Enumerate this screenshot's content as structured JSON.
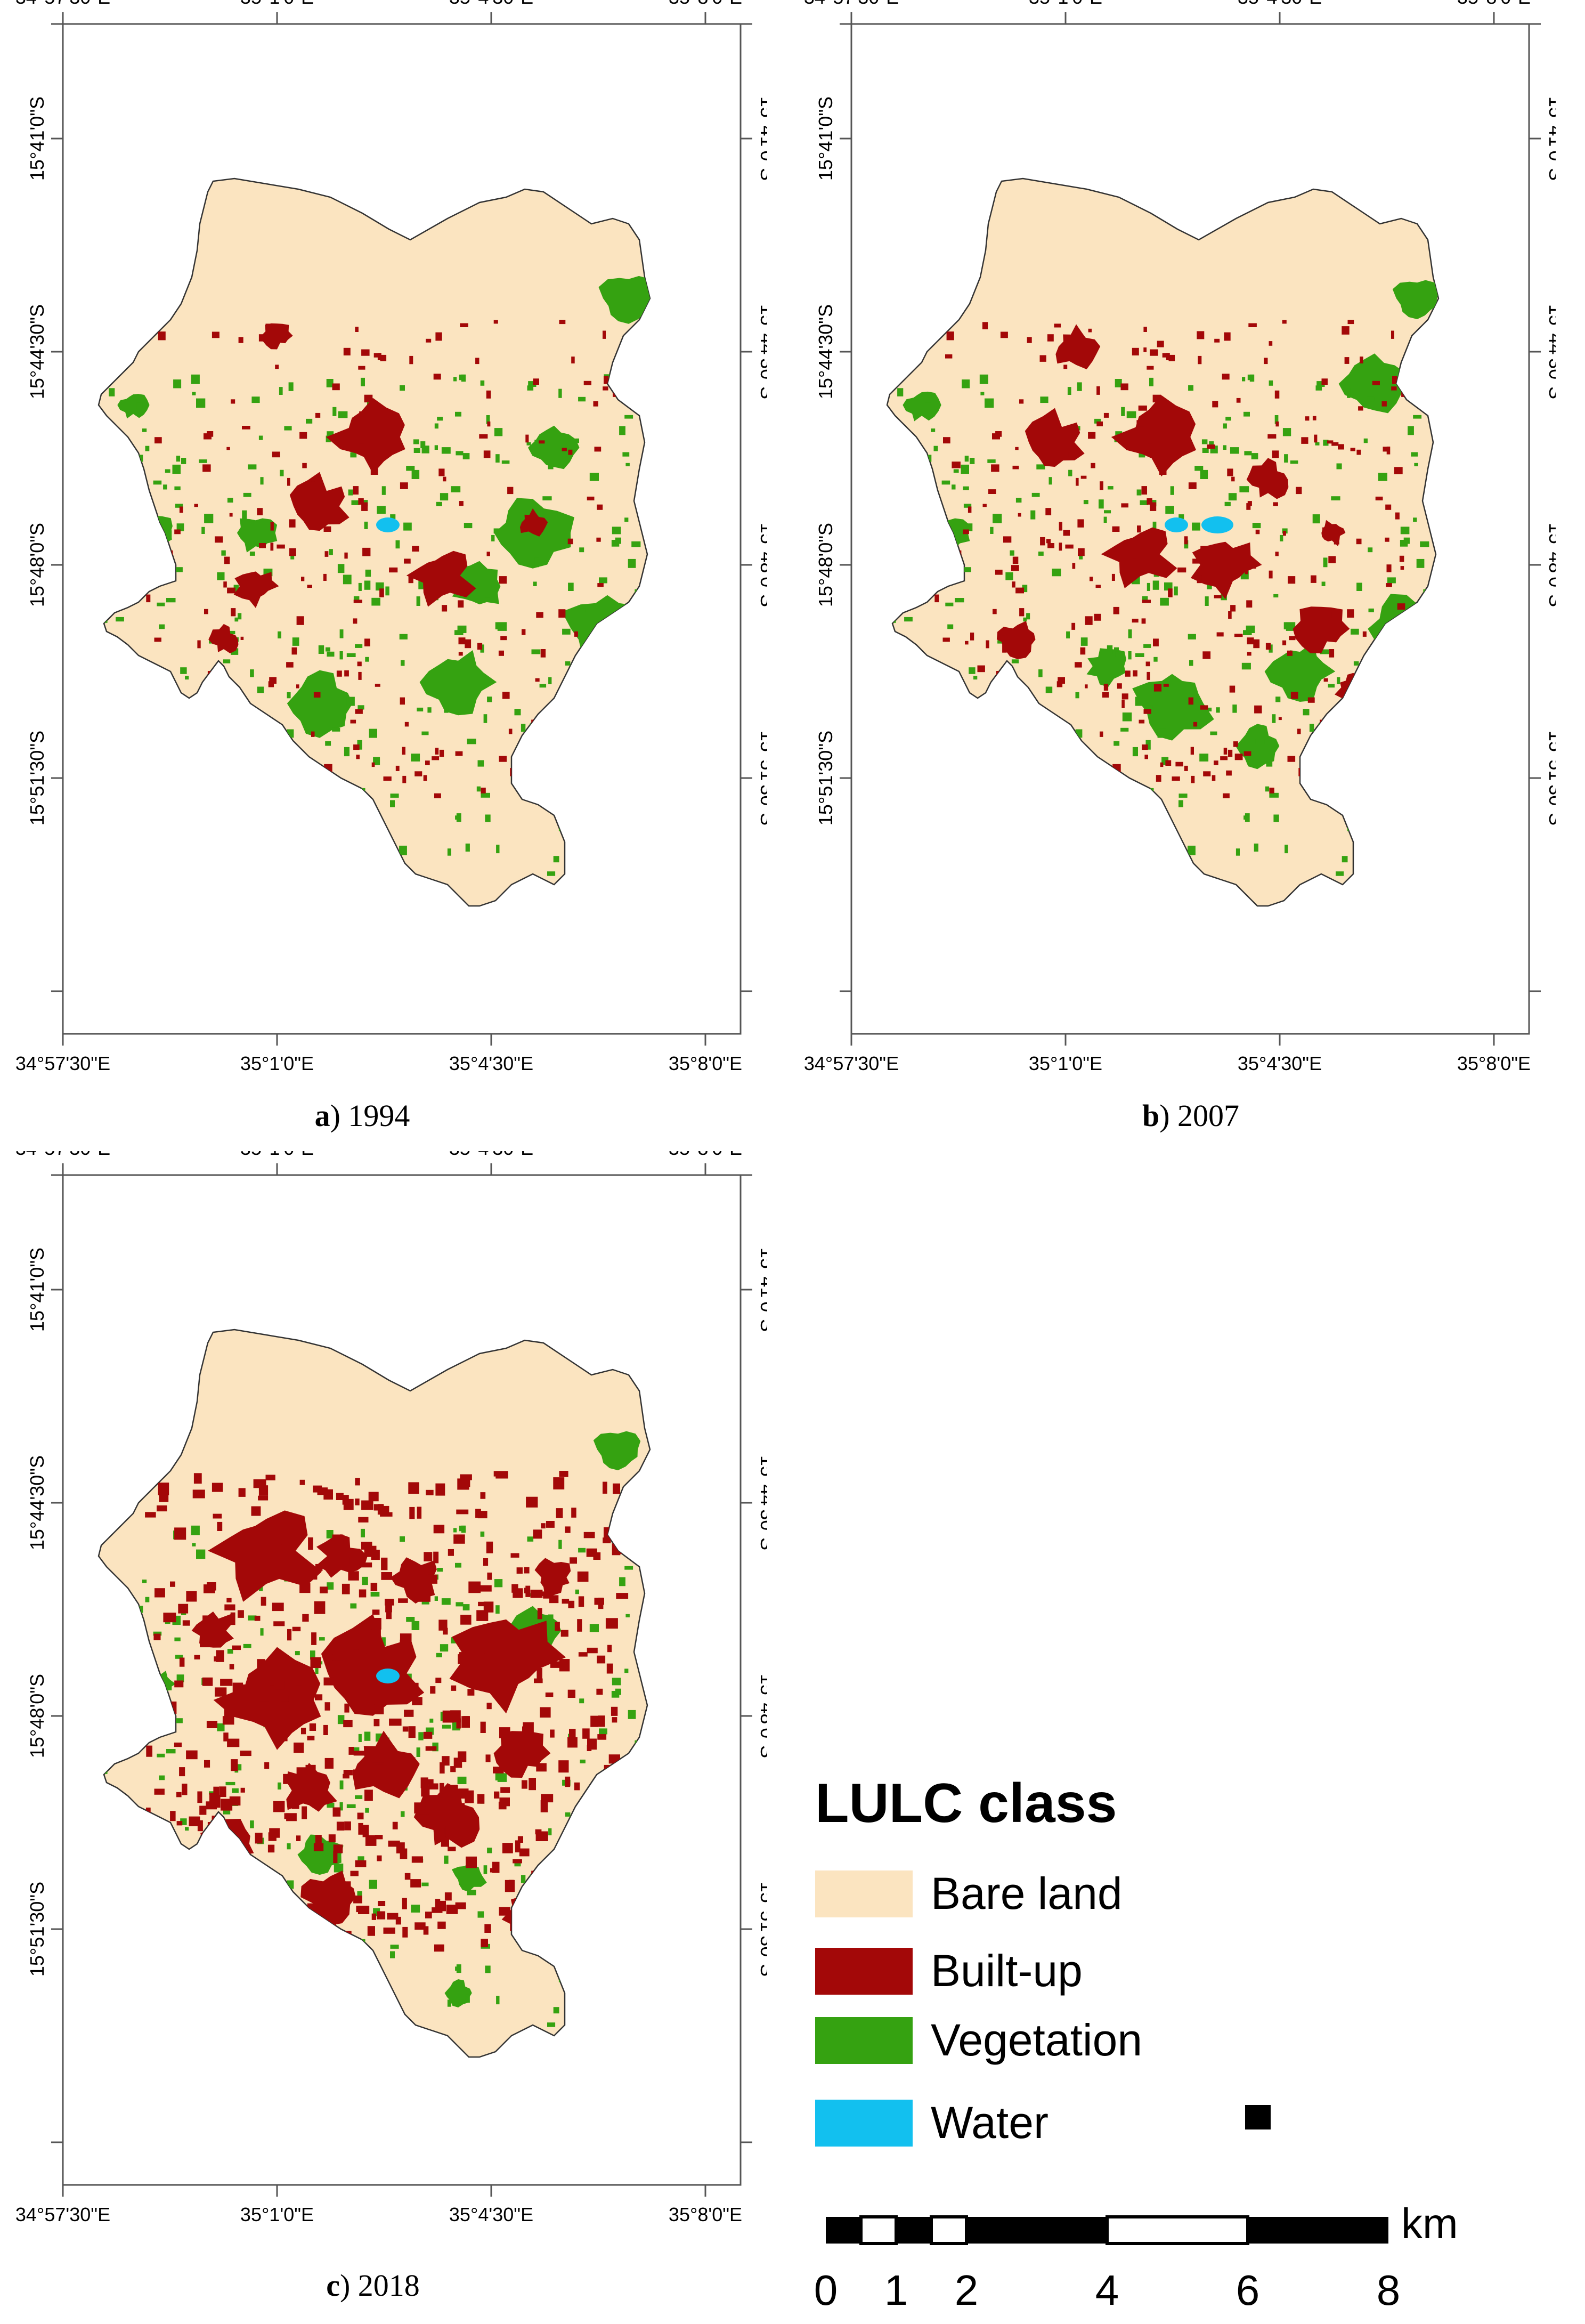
{
  "panels": [
    {
      "letter": "a",
      "year": "1994"
    },
    {
      "letter": "b",
      "year": "2007"
    },
    {
      "letter": "c",
      "year": "2018"
    }
  ],
  "axis": {
    "lon_ticks": [
      "34°57'30\"E",
      "35°1'0\"E",
      "35°4'30\"E",
      "35°8'0\"E"
    ],
    "lat_ticks": [
      "15°41'0\"S",
      "15°44'30\"S",
      "15°48'0\"S",
      "15°51'30\"S"
    ]
  },
  "legend": {
    "title": "LULC class",
    "items": [
      {
        "label": "Bare land",
        "color": "#fbe4c0"
      },
      {
        "label": "Built-up",
        "color": "#a30808"
      },
      {
        "label": "Vegetation",
        "color": "#35a211"
      },
      {
        "label": "Water",
        "color": "#12c0ef"
      }
    ]
  },
  "scalebar": {
    "unit": "km",
    "labels": [
      "0",
      "1",
      "2",
      "4",
      "6",
      "8"
    ]
  }
}
